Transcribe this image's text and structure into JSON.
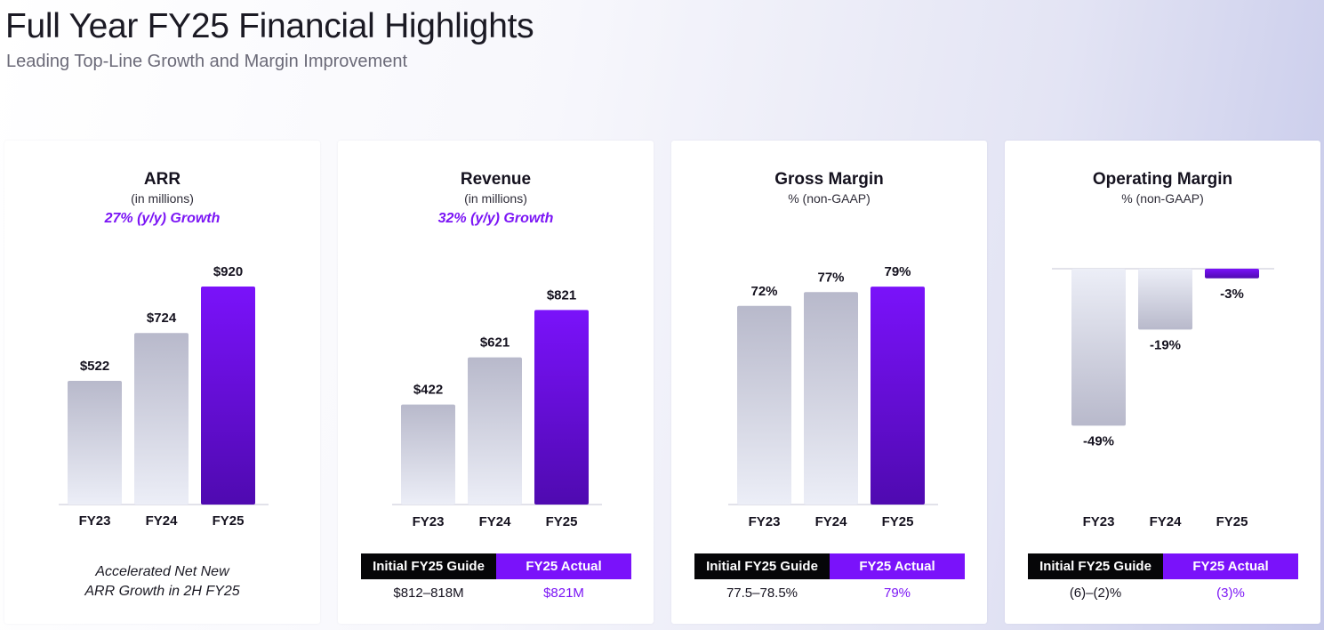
{
  "page": {
    "title": "Full Year FY25 Financial Highlights",
    "subtitle": "Leading Top-Line Growth and Margin Improvement"
  },
  "colors": {
    "accent": "#7a12fa",
    "bar_grey_top": "#b8b9cb",
    "bar_grey_bottom": "#eceef7",
    "bar_purple_top": "#7a12fa",
    "bar_purple_bottom": "#4f0ab0"
  },
  "chart_data": [
    {
      "type": "bar",
      "title": "ARR",
      "subtitle": "(in millions)",
      "growth": "27% (y/y) Growth",
      "categories": [
        "FY23",
        "FY24",
        "FY25"
      ],
      "values": [
        522,
        724,
        920
      ],
      "labels": [
        "$522",
        "$724",
        "$920"
      ],
      "highlight_index": 2,
      "ylim": [
        0,
        1000
      ],
      "footnote": [
        "Accelerated Net New",
        "ARR Growth in 2H FY25"
      ]
    },
    {
      "type": "bar",
      "title": "Revenue",
      "subtitle": "(in millions)",
      "growth": "32% (y/y) Growth",
      "categories": [
        "FY23",
        "FY24",
        "FY25"
      ],
      "values": [
        422,
        621,
        821
      ],
      "labels": [
        "$422",
        "$621",
        "$821"
      ],
      "highlight_index": 2,
      "ylim": [
        0,
        1000
      ],
      "guide": {
        "header_left": "Initial FY25 Guide",
        "header_right": "FY25 Actual",
        "value_left": "$812–818M",
        "value_right": "$821M"
      }
    },
    {
      "type": "bar",
      "title": "Gross Margin",
      "subtitle": "% (non-GAAP)",
      "categories": [
        "FY23",
        "FY24",
        "FY25"
      ],
      "values": [
        72,
        77,
        79
      ],
      "labels": [
        "72%",
        "77%",
        "79%"
      ],
      "highlight_index": 2,
      "ylim": [
        0,
        100
      ],
      "guide": {
        "header_left": "Initial FY25 Guide",
        "header_right": "FY25 Actual",
        "value_left": "77.5–78.5%",
        "value_right": "79%"
      }
    },
    {
      "type": "bar",
      "title": "Operating Margin",
      "subtitle": "% (non-GAAP)",
      "categories": [
        "FY23",
        "FY24",
        "FY25"
      ],
      "values": [
        -49,
        -19,
        -3
      ],
      "labels": [
        "-49%",
        "-19%",
        "-3%"
      ],
      "highlight_index": 2,
      "ylim": [
        -50,
        0
      ],
      "guide": {
        "header_left": "Initial FY25 Guide",
        "header_right": "FY25 Actual",
        "value_left": "(6)–(2)%",
        "value_right": "(3)%"
      }
    }
  ]
}
